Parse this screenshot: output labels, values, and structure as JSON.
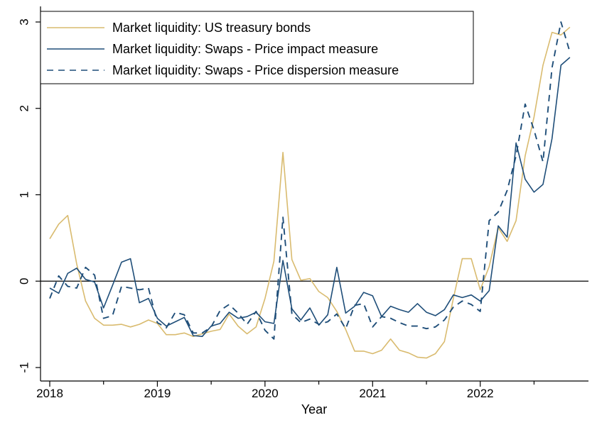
{
  "chart_data": {
    "type": "line",
    "title": "",
    "xlabel": "Year",
    "ylabel": "",
    "xlim": [
      2018,
      2022.9
    ],
    "ylim": [
      -1,
      3
    ],
    "x_ticks": [
      2018,
      2019,
      2020,
      2021,
      2022
    ],
    "x_ticks_minor": [
      2018.5,
      2019.5,
      2020.5,
      2021.5,
      2022.5
    ],
    "y_ticks": [
      -1,
      0,
      1,
      2,
      3
    ],
    "x_tick_labels": [
      "2018",
      "2019",
      "2020",
      "2021",
      "2022"
    ],
    "y_tick_labels": [
      "-1",
      "0",
      "1",
      "2",
      "3"
    ],
    "reference_line": {
      "y": 0,
      "color": "#000000"
    },
    "legend_position": "top-left",
    "series": [
      {
        "name": "Market liquidity: US treasury bonds",
        "color": "#d9bb6f",
        "style": "solid",
        "x": [
          2018.0,
          2018.083,
          2018.167,
          2018.25,
          2018.333,
          2018.417,
          2018.5,
          2018.583,
          2018.667,
          2018.75,
          2018.833,
          2018.917,
          2019.0,
          2019.083,
          2019.167,
          2019.25,
          2019.333,
          2019.417,
          2019.5,
          2019.583,
          2019.667,
          2019.75,
          2019.833,
          2019.917,
          2020.0,
          2020.083,
          2020.167,
          2020.25,
          2020.333,
          2020.417,
          2020.5,
          2020.583,
          2020.667,
          2020.75,
          2020.833,
          2020.917,
          2021.0,
          2021.083,
          2021.167,
          2021.25,
          2021.333,
          2021.417,
          2021.5,
          2021.583,
          2021.667,
          2021.75,
          2021.833,
          2021.917,
          2022.0,
          2022.083,
          2022.167,
          2022.25,
          2022.333,
          2022.417,
          2022.5,
          2022.583,
          2022.667,
          2022.75,
          2022.833
        ],
        "values": [
          0.49,
          0.66,
          0.76,
          0.2,
          -0.23,
          -0.43,
          -0.51,
          -0.51,
          -0.5,
          -0.53,
          -0.5,
          -0.45,
          -0.49,
          -0.62,
          -0.62,
          -0.6,
          -0.64,
          -0.61,
          -0.58,
          -0.56,
          -0.38,
          -0.52,
          -0.61,
          -0.53,
          -0.2,
          0.23,
          1.49,
          0.25,
          0.01,
          0.03,
          -0.12,
          -0.19,
          -0.35,
          -0.56,
          -0.81,
          -0.81,
          -0.84,
          -0.8,
          -0.67,
          -0.8,
          -0.83,
          -0.88,
          -0.89,
          -0.84,
          -0.7,
          -0.2,
          0.26,
          0.26,
          -0.1,
          0.17,
          0.62,
          0.46,
          0.7,
          1.45,
          1.9,
          2.5,
          2.88,
          2.85,
          2.94
        ]
      },
      {
        "name": "Market liquidity: Swaps - Price impact measure",
        "color": "#1f4e79",
        "style": "solid",
        "x": [
          2018.0,
          2018.083,
          2018.167,
          2018.25,
          2018.333,
          2018.417,
          2018.5,
          2018.583,
          2018.667,
          2018.75,
          2018.833,
          2018.917,
          2019.0,
          2019.083,
          2019.167,
          2019.25,
          2019.333,
          2019.417,
          2019.5,
          2019.583,
          2019.667,
          2019.75,
          2019.833,
          2019.917,
          2020.0,
          2020.083,
          2020.167,
          2020.25,
          2020.333,
          2020.417,
          2020.5,
          2020.583,
          2020.667,
          2020.75,
          2020.833,
          2020.917,
          2021.0,
          2021.083,
          2021.167,
          2021.25,
          2021.333,
          2021.417,
          2021.5,
          2021.583,
          2021.667,
          2021.75,
          2021.833,
          2021.917,
          2022.0,
          2022.083,
          2022.167,
          2022.25,
          2022.333,
          2022.417,
          2022.5,
          2022.583,
          2022.667,
          2022.75,
          2022.833
        ],
        "values": [
          -0.08,
          -0.14,
          0.09,
          0.15,
          0.02,
          -0.01,
          -0.31,
          -0.05,
          0.22,
          0.26,
          -0.25,
          -0.2,
          -0.43,
          -0.52,
          -0.47,
          -0.42,
          -0.63,
          -0.64,
          -0.52,
          -0.49,
          -0.36,
          -0.43,
          -0.41,
          -0.36,
          -0.47,
          -0.49,
          0.24,
          -0.32,
          -0.45,
          -0.31,
          -0.51,
          -0.39,
          0.16,
          -0.37,
          -0.29,
          -0.13,
          -0.17,
          -0.41,
          -0.29,
          -0.33,
          -0.36,
          -0.26,
          -0.36,
          -0.4,
          -0.33,
          -0.16,
          -0.19,
          -0.16,
          -0.23,
          -0.11,
          0.64,
          0.51,
          1.6,
          1.18,
          1.03,
          1.12,
          1.65,
          2.5,
          2.59
        ]
      },
      {
        "name": "Market liquidity: Swaps - Price dispersion measure",
        "color": "#1f4e79",
        "style": "dashed",
        "x": [
          2018.0,
          2018.083,
          2018.167,
          2018.25,
          2018.333,
          2018.417,
          2018.5,
          2018.583,
          2018.667,
          2018.75,
          2018.833,
          2018.917,
          2019.0,
          2019.083,
          2019.167,
          2019.25,
          2019.333,
          2019.417,
          2019.5,
          2019.583,
          2019.667,
          2019.75,
          2019.833,
          2019.917,
          2020.0,
          2020.083,
          2020.167,
          2020.25,
          2020.333,
          2020.417,
          2020.5,
          2020.583,
          2020.667,
          2020.75,
          2020.833,
          2020.917,
          2021.0,
          2021.083,
          2021.167,
          2021.25,
          2021.333,
          2021.417,
          2021.5,
          2021.583,
          2021.667,
          2021.75,
          2021.833,
          2021.917,
          2022.0,
          2022.083,
          2022.167,
          2022.25,
          2022.333,
          2022.417,
          2022.5,
          2022.583,
          2022.667,
          2022.75,
          2022.833
        ],
        "values": [
          -0.2,
          0.06,
          -0.06,
          -0.08,
          0.16,
          0.07,
          -0.43,
          -0.4,
          -0.06,
          -0.08,
          -0.1,
          -0.08,
          -0.48,
          -0.54,
          -0.36,
          -0.39,
          -0.6,
          -0.6,
          -0.53,
          -0.34,
          -0.27,
          -0.37,
          -0.5,
          -0.35,
          -0.57,
          -0.67,
          0.74,
          -0.38,
          -0.48,
          -0.44,
          -0.5,
          -0.47,
          -0.38,
          -0.55,
          -0.28,
          -0.26,
          -0.53,
          -0.41,
          -0.43,
          -0.48,
          -0.52,
          -0.52,
          -0.55,
          -0.53,
          -0.45,
          -0.3,
          -0.23,
          -0.27,
          -0.35,
          0.7,
          0.8,
          1.05,
          1.45,
          2.05,
          1.75,
          1.38,
          2.47,
          3.0,
          2.65
        ]
      }
    ]
  }
}
